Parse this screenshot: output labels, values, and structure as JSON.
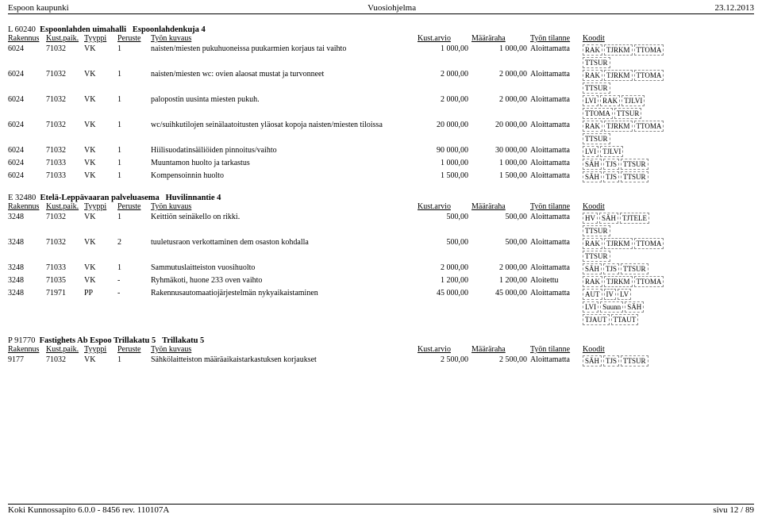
{
  "header": {
    "left": "Espoon kaupunki",
    "center": "Vuosiohjelma",
    "right": "23.12.2013"
  },
  "footer": {
    "left": "Koki Kunnossapito 6.0.0 - 8456 rev. 110107A",
    "right": "sivu 12 / 89"
  },
  "col_labels": {
    "rakennus": "Rakennus",
    "kust": "Kust.paik.",
    "tyyppi": "Tyyppi",
    "peruste": "Peruste",
    "kuvaus": "Työn kuvaus",
    "arvio": "Kust.arvio",
    "maara": "Määräraha",
    "tilanne": "Työn tilanne",
    "koodit": "Koodit"
  },
  "sections": [
    {
      "heading_code": "L   60240",
      "heading_name": "Espoonlahden uimahalli",
      "heading_addr": "Espoonlahdenkuja 4",
      "rows": [
        {
          "rak": "6024",
          "kust": "71032",
          "tyyppi": "VK",
          "per": "1",
          "desc": "naisten/miesten pukuhuoneissa puukarmien korjaus tai vaihto",
          "arvio": "1 000,00",
          "maara": "1 000,00",
          "tilanne": "Aloittamatta",
          "koodit": [
            [
              "RAK",
              "TJRKM",
              "TTOMA"
            ],
            [
              "TTSUR"
            ]
          ]
        },
        {
          "rak": "6024",
          "kust": "71032",
          "tyyppi": "VK",
          "per": "1",
          "desc": "naisten/miesten wc: ovien alaosat mustat ja turvonneet",
          "arvio": "2 000,00",
          "maara": "2 000,00",
          "tilanne": "Aloittamatta",
          "koodit": [
            [
              "RAK",
              "TJRKM",
              "TTOMA"
            ],
            [
              "TTSUR"
            ]
          ]
        },
        {
          "rak": "6024",
          "kust": "71032",
          "tyyppi": "VK",
          "per": "1",
          "desc": "palopostin uusinta miesten pukuh.",
          "arvio": "2 000,00",
          "maara": "2 000,00",
          "tilanne": "Aloittamatta",
          "koodit": [
            [
              "LVI",
              "RAK",
              "TJLVI"
            ],
            [
              "TTOMA",
              "TTSUR"
            ]
          ]
        },
        {
          "rak": "6024",
          "kust": "71032",
          "tyyppi": "VK",
          "per": "1",
          "desc": "wc/suihkutilojen seinälaatoitusten yläosat kopoja naisten/miesten tiloissa",
          "arvio": "20 000,00",
          "maara": "20 000,00",
          "tilanne": "Aloittamatta",
          "koodit": [
            [
              "RAK",
              "TJRKM",
              "TTOMA"
            ],
            [
              "TTSUR"
            ]
          ]
        },
        {
          "rak": "6024",
          "kust": "71032",
          "tyyppi": "VK",
          "per": "1",
          "desc": "Hiilisuodatinsäiliöiden pinnoitus/vaihto",
          "arvio": "90 000,00",
          "maara": "30 000,00",
          "tilanne": "Aloittamatta",
          "koodit": [
            [
              "LVI",
              "TJLVI"
            ]
          ]
        },
        {
          "rak": "6024",
          "kust": "71033",
          "tyyppi": "VK",
          "per": "1",
          "desc": "Muuntamon huolto ja tarkastus",
          "arvio": "1 000,00",
          "maara": "1 000,00",
          "tilanne": "Aloittamatta",
          "koodit": [
            [
              "SÄH",
              "TJS",
              "TTSUR"
            ]
          ]
        },
        {
          "rak": "6024",
          "kust": "71033",
          "tyyppi": "VK",
          "per": "1",
          "desc": "Kompensoinnin huolto",
          "arvio": "1 500,00",
          "maara": "1 500,00",
          "tilanne": "Aloittamatta",
          "koodit": [
            [
              "SÄH",
              "TJS",
              "TTSUR"
            ]
          ]
        }
      ]
    },
    {
      "heading_code": "E   32480",
      "heading_name": "Etelä-Leppävaaran palveluasema",
      "heading_addr": "Huvilinnantie 4",
      "rows": [
        {
          "rak": "3248",
          "kust": "71032",
          "tyyppi": "VK",
          "per": "1",
          "desc": "Keittiön seinäkello on rikki.",
          "arvio": "500,00",
          "maara": "500,00",
          "tilanne": "Aloittamatta",
          "koodit": [
            [
              "HV",
              "SÄH",
              "TJTELE"
            ],
            [
              "TTSUR"
            ]
          ]
        },
        {
          "rak": "3248",
          "kust": "71032",
          "tyyppi": "VK",
          "per": "2",
          "desc": "tuuletusraon verkottaminen dem osaston kohdalla",
          "arvio": "500,00",
          "maara": "500,00",
          "tilanne": "Aloittamatta",
          "koodit": [
            [
              "RAK",
              "TJRKM",
              "TTOMA"
            ],
            [
              "TTSUR"
            ]
          ]
        },
        {
          "rak": "3248",
          "kust": "71033",
          "tyyppi": "VK",
          "per": "1",
          "desc": "Sammutuslaitteiston vuosihuolto",
          "arvio": "2 000,00",
          "maara": "2 000,00",
          "tilanne": "Aloittamatta",
          "koodit": [
            [
              "SÄH",
              "TJS",
              "TTSUR"
            ]
          ]
        },
        {
          "rak": "3248",
          "kust": "71035",
          "tyyppi": "VK",
          "per": "-",
          "desc": "Ryhmäkoti, huone 233 oven vaihto",
          "arvio": "1 200,00",
          "maara": "1 200,00",
          "tilanne": "Aloitettu",
          "koodit": [
            [
              "RAK",
              "TJRKM",
              "TTOMA"
            ]
          ]
        },
        {
          "rak": "3248",
          "kust": "71971",
          "tyyppi": "PP",
          "per": "-",
          "desc": "Rakennusautomaatiojärjestelmän nykyaikaistaminen",
          "arvio": "45 000,00",
          "maara": "45 000,00",
          "tilanne": "Aloittamatta",
          "koodit": [
            [
              "AUT",
              "IV",
              "LV"
            ],
            [
              "LVI",
              "Suunn",
              "SÄH"
            ],
            [
              "TJAUT",
              "TTAUT"
            ]
          ]
        }
      ]
    },
    {
      "heading_code": "P   91770",
      "heading_name": "Fastighets Ab Espoo Trillakatu 5",
      "heading_addr": "Trillakatu 5",
      "rows": [
        {
          "rak": "9177",
          "kust": "71032",
          "tyyppi": "VK",
          "per": "1",
          "desc": "Sähkölaitteiston määräaikaistarkastuksen korjaukset",
          "arvio": "2 500,00",
          "maara": "2 500,00",
          "tilanne": "Aloittamatta",
          "koodit": [
            [
              "SÄH",
              "TJS",
              "TTSUR"
            ]
          ]
        }
      ]
    }
  ]
}
